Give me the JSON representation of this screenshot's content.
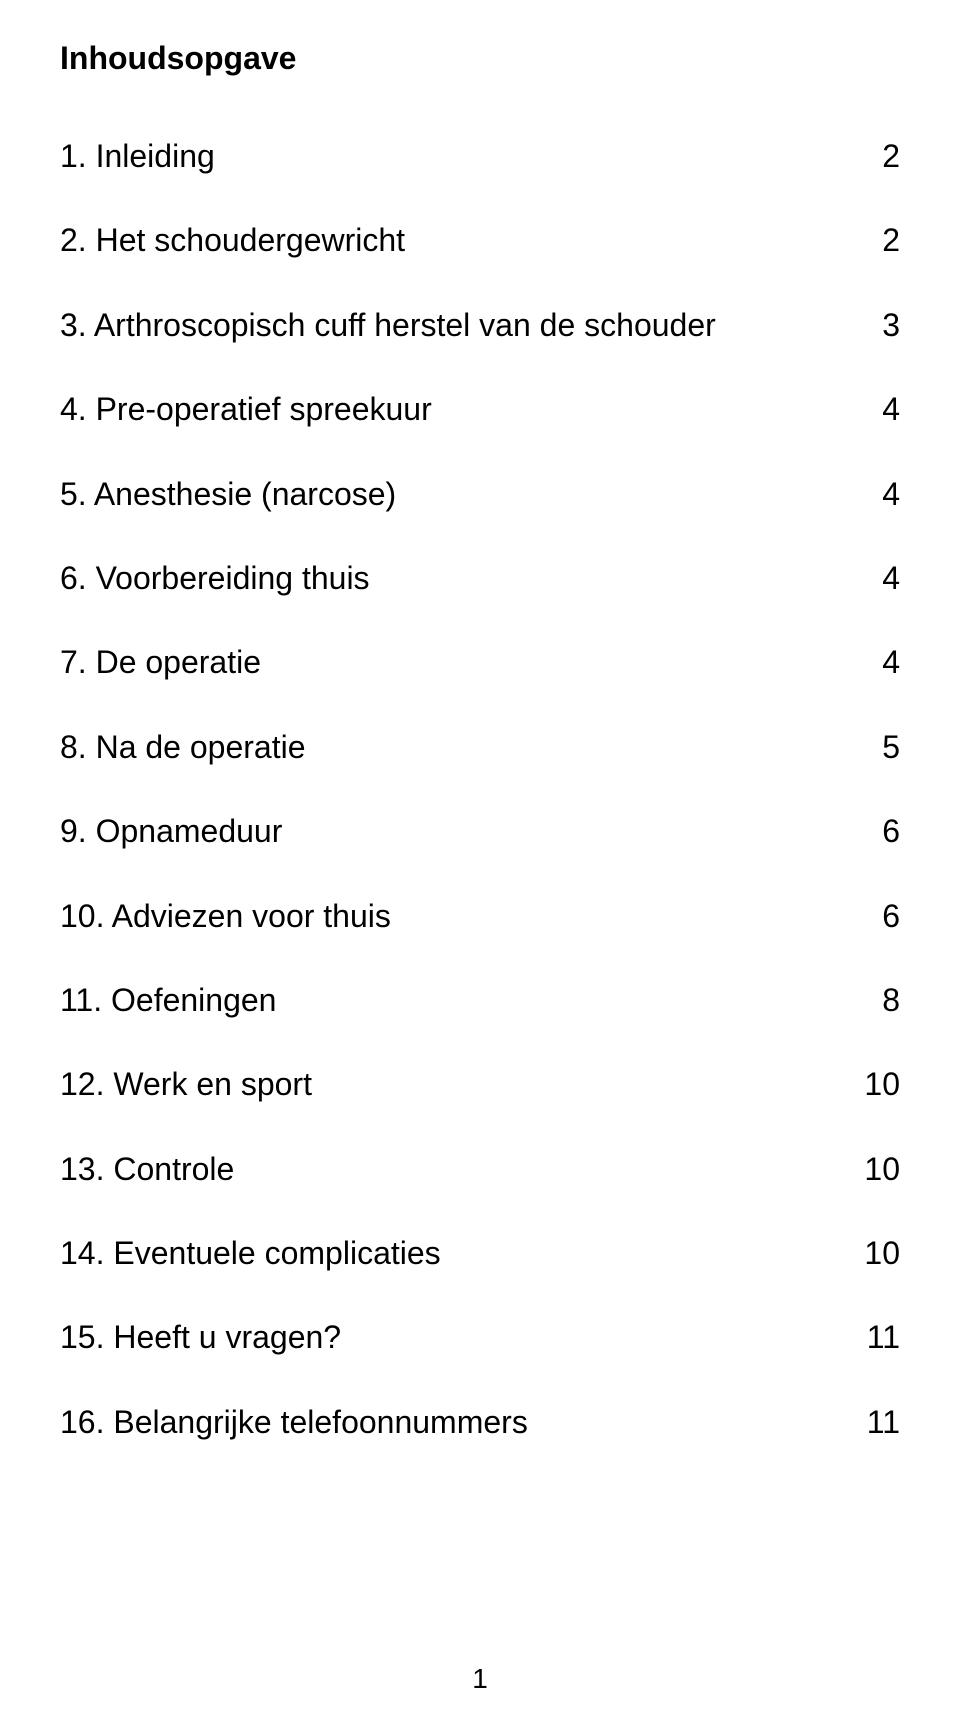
{
  "title": "Inhoudsopgave",
  "toc": [
    {
      "label": "1. Inleiding",
      "page": "2"
    },
    {
      "label": "2. Het schoudergewricht",
      "page": "2"
    },
    {
      "label": "3. Arthroscopisch cuff herstel van de schouder",
      "page": "3"
    },
    {
      "label": "4. Pre-operatief spreekuur",
      "page": "4"
    },
    {
      "label": "5. Anesthesie (narcose)",
      "page": "4"
    },
    {
      "label": "6. Voorbereiding thuis",
      "page": "4"
    },
    {
      "label": "7. De operatie",
      "page": "4"
    },
    {
      "label": "8. Na de operatie",
      "page": "5"
    },
    {
      "label": "9. Opnameduur",
      "page": "6"
    },
    {
      "label": "10. Adviezen voor thuis",
      "page": "6"
    },
    {
      "label": "11. Oefeningen",
      "page": "8"
    },
    {
      "label": "12. Werk en sport",
      "page": "10"
    },
    {
      "label": "13. Controle",
      "page": "10"
    },
    {
      "label": "14. Eventuele complicaties",
      "page": "10"
    },
    {
      "label": "15. Heeft u vragen?",
      "page": "11"
    },
    {
      "label": "16. Belangrijke telefoonnummers",
      "page": "11"
    }
  ],
  "page_number": "1",
  "style": {
    "background_color": "#ffffff",
    "text_color": "#000000",
    "title_fontsize": 32,
    "body_fontsize": 32,
    "font_family": "Arial"
  }
}
